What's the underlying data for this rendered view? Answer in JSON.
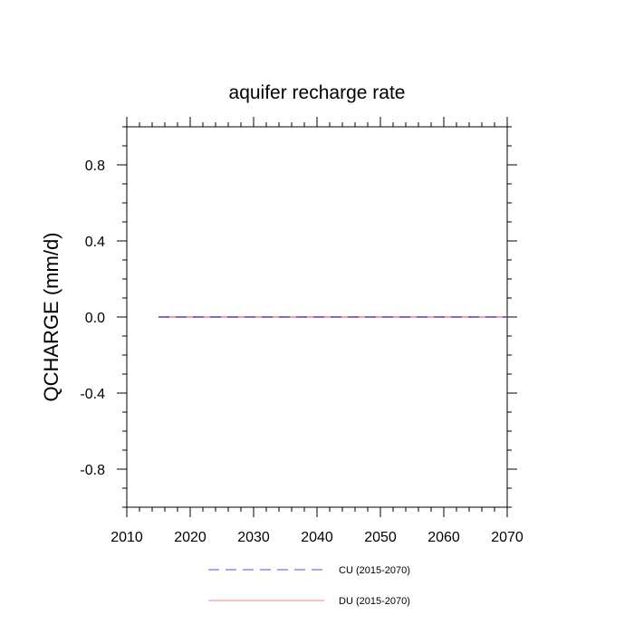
{
  "chart_data": {
    "type": "line",
    "title": "aquifer recharge rate",
    "xlabel": "",
    "ylabel": "QCHARGE  (mm/d)",
    "xlim": [
      2010,
      2070
    ],
    "ylim": [
      -1.0,
      1.0
    ],
    "x_ticks": [
      2010,
      2020,
      2030,
      2040,
      2050,
      2060,
      2070
    ],
    "x_tick_labels": [
      "2010",
      "2020",
      "2030",
      "2040",
      "2050",
      "2060",
      "2070"
    ],
    "y_ticks": [
      0.8,
      0.4,
      0.0,
      -0.4,
      -0.8
    ],
    "y_tick_labels": [
      "0.8",
      "0.4",
      "0.0",
      "-0.4",
      "-0.8"
    ],
    "grid": false,
    "legend_position": "bottom-center",
    "series": [
      {
        "name": "CU (2015-2070)",
        "color": "#5a4fcf",
        "style": "dashed",
        "x": [
          2015,
          2070
        ],
        "y": [
          0.0,
          0.0
        ]
      },
      {
        "name": "DU (2015-2070)",
        "color": "#f08080",
        "style": "solid",
        "x": [
          2015,
          2070
        ],
        "y": [
          0.0,
          0.0
        ]
      }
    ]
  }
}
